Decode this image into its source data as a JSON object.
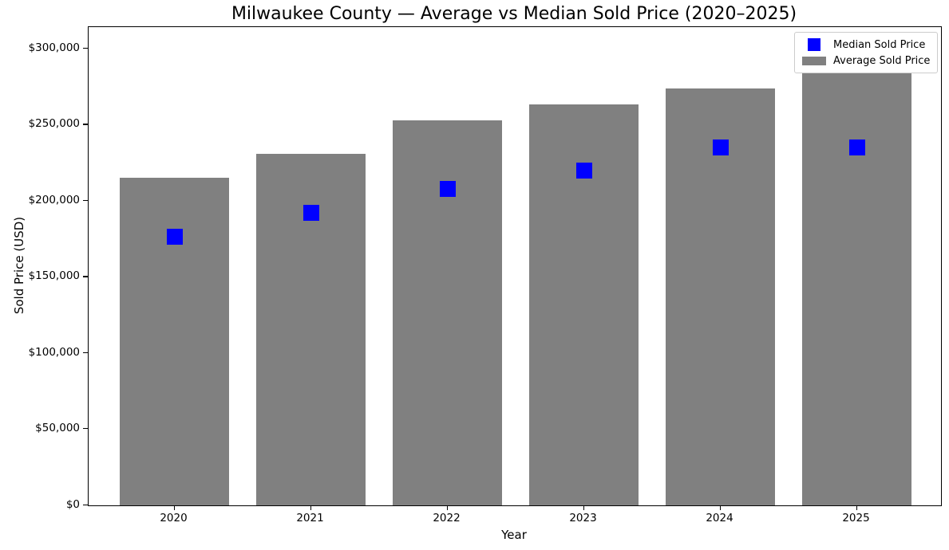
{
  "chart_data": {
    "type": "bar",
    "title": "Milwaukee County — Average vs Median Sold Price (2020–2025)",
    "xlabel": "Year",
    "ylabel": "Sold Price (USD)",
    "categories": [
      "2020",
      "2021",
      "2022",
      "2023",
      "2024",
      "2025"
    ],
    "series": [
      {
        "name": "Average Sold Price",
        "type": "bar",
        "color": "#808080",
        "values": [
          215000,
          231000,
          253000,
          263500,
          274000,
          284000
        ]
      },
      {
        "name": "Median Sold Price",
        "type": "scatter",
        "marker": "square",
        "color": "#0000ff",
        "values": [
          176500,
          192000,
          208000,
          220000,
          235000,
          235000
        ]
      }
    ],
    "ylim": [
      0,
      314000
    ],
    "yticks": {
      "values": [
        0,
        50000,
        100000,
        150000,
        200000,
        250000,
        300000
      ],
      "labels": [
        "$0",
        "$50,000",
        "$100,000",
        "$150,000",
        "$200,000",
        "$250,000",
        "$300,000"
      ]
    },
    "grid": false,
    "legend": {
      "position": "upper right",
      "entries": [
        {
          "label": "Median Sold Price",
          "swatch": "square",
          "color": "#0000ff"
        },
        {
          "label": "Average Sold Price",
          "swatch": "rect",
          "color": "#808080"
        }
      ]
    }
  }
}
